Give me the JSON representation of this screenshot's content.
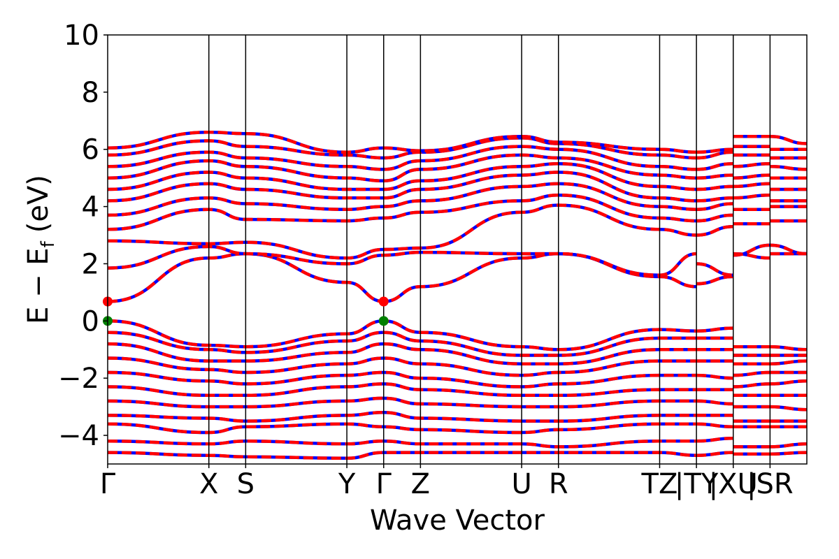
{
  "chart_data": {
    "type": "line",
    "title": "",
    "xlabel": "Wave Vector",
    "ylabel": {
      "main": "E − E",
      "sub": "f",
      "unit": "(eV)"
    },
    "ylim": [
      -5,
      10
    ],
    "yticks": [
      -4,
      -2,
      0,
      2,
      4,
      6,
      8,
      10
    ],
    "ytick_labels": [
      "−4",
      "−2",
      "0",
      "2",
      "4",
      "6",
      "8",
      "10"
    ],
    "kpoints": [
      {
        "pos": 0.0,
        "label": "Γ"
      },
      {
        "pos": 2.75,
        "label": "X"
      },
      {
        "pos": 3.75,
        "label": "S"
      },
      {
        "pos": 6.5,
        "label": "Y"
      },
      {
        "pos": 7.5,
        "label": "Γ"
      },
      {
        "pos": 8.5,
        "label": "Z"
      },
      {
        "pos": 11.25,
        "label": "U"
      },
      {
        "pos": 12.25,
        "label": "R"
      },
      {
        "pos": 15.0,
        "label": "TZ"
      },
      {
        "pos": 16.0,
        "label": "|TY"
      },
      {
        "pos": 17.0,
        "label": "|XU"
      },
      {
        "pos": 18.0,
        "label": "|SR"
      }
    ],
    "xrange": [
      0,
      19.0
    ],
    "grid": false,
    "legend": "none",
    "colors": {
      "spin_up": "#0000ff",
      "spin_down": "#ff0000",
      "vbm": "#008000",
      "cbm": "#ff0000"
    },
    "band_extrema": {
      "cbm": [
        {
          "k": 0.0,
          "E": 0.68
        },
        {
          "k": 7.5,
          "E": 0.68
        }
      ],
      "vbm": [
        {
          "k": 0.0,
          "E": 0.0
        },
        {
          "k": 7.5,
          "E": 0.0
        }
      ]
    },
    "representative_bands": [
      {
        "name": "cb1",
        "k": [
          0,
          2.75,
          3.75,
          6.5,
          7.5,
          8.5,
          11.25,
          12.25,
          15.0,
          16.0,
          16.0,
          17.0,
          17.0,
          18.0,
          18.0,
          19.0
        ],
        "E": [
          0.68,
          2.2,
          2.35,
          1.35,
          0.68,
          1.2,
          2.2,
          2.35,
          1.55,
          1.2,
          1.3,
          1.55,
          2.35,
          2.2,
          2.35,
          2.35
        ]
      },
      {
        "name": "cb2",
        "k": [
          0,
          2.75,
          3.75,
          6.5,
          7.5,
          8.5,
          11.25,
          12.25,
          15.0,
          16.0,
          16.0,
          17.0,
          17.0,
          18.0,
          18.0,
          19.0
        ],
        "E": [
          1.85,
          2.6,
          2.35,
          2.0,
          2.3,
          2.4,
          2.35,
          2.35,
          1.6,
          2.35,
          2.0,
          1.6,
          2.3,
          2.65,
          2.65,
          2.35
        ]
      },
      {
        "name": "cb3",
        "k": [
          0,
          2.75,
          3.75,
          6.5,
          7.5,
          8.5,
          11.25,
          12.25,
          15.0,
          16.0,
          16.0,
          17.0,
          17.0,
          18.0,
          18.0,
          19.0
        ],
        "E": [
          2.8,
          2.7,
          2.75,
          2.2,
          2.5,
          2.55,
          3.8,
          4.05,
          3.2,
          3.0,
          3.0,
          3.3,
          3.4,
          3.4,
          3.5,
          3.5
        ]
      },
      {
        "name": "cb4",
        "k": [
          0,
          2.75,
          3.75,
          6.5,
          7.5,
          8.5,
          11.25,
          12.25,
          15.0,
          16.0,
          16.0,
          17.0,
          17.0,
          18.0,
          18.0,
          19.0
        ],
        "E": [
          3.2,
          3.9,
          3.55,
          3.5,
          3.6,
          3.8,
          4.2,
          4.4,
          3.6,
          3.5,
          3.5,
          3.7,
          3.9,
          3.9,
          4.0,
          4.0
        ]
      },
      {
        "name": "cb5",
        "k": [
          0,
          2.75,
          3.75,
          6.5,
          7.5,
          8.5,
          11.25,
          12.25,
          15.0,
          16.0,
          16.0,
          17.0,
          17.0,
          18.0,
          18.0,
          19.0
        ],
        "E": [
          3.7,
          4.3,
          4.1,
          3.9,
          4.0,
          4.2,
          4.7,
          4.8,
          4.0,
          3.9,
          3.9,
          4.1,
          4.3,
          4.4,
          4.2,
          4.2
        ]
      },
      {
        "name": "cb6",
        "k": [
          0,
          2.75,
          3.75,
          6.5,
          7.5,
          8.5,
          11.25,
          12.25,
          15.0,
          16.0,
          16.0,
          17.0,
          17.0,
          18.0,
          18.0,
          19.0
        ],
        "E": [
          4.2,
          4.8,
          4.6,
          4.3,
          4.3,
          4.6,
          5.1,
          5.2,
          4.3,
          4.2,
          4.2,
          4.3,
          4.7,
          4.8,
          4.6,
          4.6
        ]
      },
      {
        "name": "cb7",
        "k": [
          0,
          2.75,
          3.75,
          6.5,
          7.5,
          8.5,
          11.25,
          12.25,
          15.0,
          16.0,
          16.0,
          17.0,
          17.0,
          18.0,
          18.0,
          19.0
        ],
        "E": [
          4.6,
          5.2,
          5.0,
          4.6,
          4.6,
          4.9,
          5.4,
          5.5,
          4.7,
          4.6,
          4.6,
          4.7,
          5.0,
          5.1,
          5.0,
          5.0
        ]
      },
      {
        "name": "cb8",
        "k": [
          0,
          2.75,
          3.75,
          6.5,
          7.5,
          8.5,
          11.25,
          12.25,
          15.0,
          16.0,
          16.0,
          17.0,
          17.0,
          18.0,
          18.0,
          19.0
        ],
        "E": [
          5.0,
          5.6,
          5.4,
          5.0,
          4.9,
          5.3,
          5.8,
          5.7,
          5.1,
          5.0,
          5.0,
          5.1,
          5.4,
          5.5,
          5.4,
          5.3
        ]
      },
      {
        "name": "cb9",
        "k": [
          0,
          2.75,
          3.75,
          6.5,
          7.5,
          8.5,
          11.25,
          12.25,
          15.0,
          16.0,
          16.0,
          17.0,
          17.0,
          18.0,
          18.0,
          19.0
        ],
        "E": [
          5.4,
          5.9,
          5.7,
          5.4,
          5.3,
          5.6,
          6.1,
          6.0,
          5.4,
          5.3,
          5.3,
          5.5,
          5.8,
          5.8,
          5.7,
          5.7
        ]
      },
      {
        "name": "cb10",
        "k": [
          0,
          2.75,
          3.75,
          6.5,
          7.5,
          8.5,
          11.25,
          12.25,
          15.0,
          16.0,
          16.0,
          17.0,
          17.0,
          18.0,
          18.0,
          19.0
        ],
        "E": [
          5.8,
          6.3,
          6.1,
          5.8,
          5.7,
          5.9,
          6.4,
          6.2,
          5.8,
          5.7,
          5.7,
          5.9,
          6.1,
          6.1,
          6.0,
          6.0
        ]
      },
      {
        "name": "cb11",
        "k": [
          0,
          2.75,
          3.75,
          6.5,
          7.5,
          8.5,
          11.25,
          12.25,
          15.0,
          16.0,
          16.0,
          17.0,
          17.0,
          18.0,
          18.0,
          19.0
        ],
        "E": [
          6.05,
          6.6,
          6.55,
          5.9,
          6.05,
          5.95,
          6.45,
          6.25,
          6.0,
          5.9,
          5.9,
          6.0,
          6.45,
          6.45,
          6.45,
          6.2
        ]
      },
      {
        "name": "vb1",
        "k": [
          0,
          2.75,
          3.75,
          6.5,
          7.5,
          8.5,
          11.25,
          12.25,
          15.0,
          16.0,
          16.0,
          17.0,
          17.0,
          18.0,
          18.0,
          19.0
        ],
        "E": [
          0.0,
          -0.85,
          -0.9,
          -0.45,
          0.0,
          -0.4,
          -0.9,
          -1.0,
          -0.3,
          -0.35,
          -0.35,
          -0.25,
          -0.9,
          -0.9,
          -0.9,
          -1.0
        ]
      },
      {
        "name": "vb2",
        "k": [
          0,
          2.75,
          3.75,
          6.5,
          7.5,
          8.5,
          11.25,
          12.25,
          15.0,
          16.0,
          16.0,
          17.0,
          17.0,
          18.0,
          18.0,
          19.0
        ],
        "E": [
          -0.4,
          -1.0,
          -1.1,
          -0.7,
          -0.4,
          -0.7,
          -1.2,
          -1.2,
          -0.6,
          -0.6,
          -0.6,
          -0.6,
          -1.2,
          -1.2,
          -1.2,
          -1.2
        ]
      },
      {
        "name": "vb3",
        "k": [
          0,
          2.75,
          3.75,
          6.5,
          7.5,
          8.5,
          11.25,
          12.25,
          15.0,
          16.0,
          16.0,
          17.0,
          17.0,
          18.0,
          18.0,
          19.0
        ],
        "E": [
          -0.8,
          -1.4,
          -1.4,
          -1.1,
          -0.8,
          -1.0,
          -1.5,
          -1.5,
          -1.0,
          -1.0,
          -1.0,
          -1.0,
          -1.5,
          -1.5,
          -1.5,
          -1.4
        ]
      },
      {
        "name": "vb4",
        "k": [
          0,
          2.75,
          3.75,
          6.5,
          7.5,
          8.5,
          11.25,
          12.25,
          15.0,
          16.0,
          16.0,
          17.0,
          17.0,
          18.0,
          18.0,
          19.0
        ],
        "E": [
          -1.3,
          -1.7,
          -1.8,
          -1.5,
          -1.3,
          -1.5,
          -1.9,
          -1.8,
          -1.4,
          -1.4,
          -1.4,
          -1.4,
          -1.9,
          -1.8,
          -1.8,
          -1.8
        ]
      },
      {
        "name": "vb5",
        "k": [
          0,
          2.75,
          3.75,
          6.5,
          7.5,
          8.5,
          11.25,
          12.25,
          15.0,
          16.0,
          16.0,
          17.0,
          17.0,
          18.0,
          18.0,
          19.0
        ],
        "E": [
          -1.8,
          -2.1,
          -2.2,
          -1.9,
          -1.8,
          -2.0,
          -2.3,
          -2.2,
          -1.9,
          -1.9,
          -1.9,
          -2.0,
          -2.3,
          -2.2,
          -2.2,
          -2.1
        ]
      },
      {
        "name": "vb6",
        "k": [
          0,
          2.75,
          3.75,
          6.5,
          7.5,
          8.5,
          11.25,
          12.25,
          15.0,
          16.0,
          16.0,
          17.0,
          17.0,
          18.0,
          18.0,
          19.0
        ],
        "E": [
          -2.3,
          -2.6,
          -2.6,
          -2.3,
          -2.2,
          -2.4,
          -2.6,
          -2.6,
          -2.4,
          -2.4,
          -2.4,
          -2.4,
          -2.6,
          -2.6,
          -2.6,
          -2.6
        ]
      },
      {
        "name": "vb7",
        "k": [
          0,
          2.75,
          3.75,
          6.5,
          7.5,
          8.5,
          11.25,
          12.25,
          15.0,
          16.0,
          16.0,
          17.0,
          17.0,
          18.0,
          18.0,
          19.0
        ],
        "E": [
          -2.8,
          -3.0,
          -3.0,
          -2.8,
          -2.7,
          -2.9,
          -3.0,
          -3.0,
          -2.8,
          -2.8,
          -2.8,
          -2.9,
          -3.0,
          -3.0,
          -3.0,
          -3.1
        ]
      },
      {
        "name": "vb8",
        "k": [
          0,
          2.75,
          3.75,
          6.5,
          7.5,
          8.5,
          11.25,
          12.25,
          15.0,
          16.0,
          16.0,
          17.0,
          17.0,
          18.0,
          18.0,
          19.0
        ],
        "E": [
          -3.3,
          -3.4,
          -3.5,
          -3.3,
          -3.2,
          -3.4,
          -3.5,
          -3.5,
          -3.3,
          -3.3,
          -3.3,
          -3.3,
          -3.5,
          -3.5,
          -3.5,
          -3.5
        ]
      },
      {
        "name": "vb9",
        "k": [
          0,
          2.75,
          3.75,
          6.5,
          7.5,
          8.5,
          11.25,
          12.25,
          15.0,
          16.0,
          16.0,
          17.0,
          17.0,
          18.0,
          18.0,
          19.0
        ],
        "E": [
          -3.6,
          -3.9,
          -3.7,
          -3.6,
          -3.7,
          -3.8,
          -3.9,
          -3.8,
          -3.6,
          -3.6,
          -3.6,
          -3.7,
          -3.7,
          -3.7,
          -3.7,
          -3.7
        ]
      },
      {
        "name": "vb10",
        "k": [
          0,
          2.75,
          3.75,
          6.5,
          7.5,
          8.5,
          11.25,
          12.25,
          15.0,
          16.0,
          16.0,
          17.0,
          17.0,
          18.0,
          18.0,
          19.0
        ],
        "E": [
          -4.2,
          -4.3,
          -4.2,
          -4.3,
          -4.2,
          -4.3,
          -4.3,
          -4.4,
          -4.2,
          -4.2,
          -4.2,
          -4.1,
          -4.4,
          -4.4,
          -4.4,
          -4.3
        ]
      },
      {
        "name": "vb11",
        "k": [
          0,
          2.75,
          3.75,
          6.5,
          7.5,
          8.5,
          11.25,
          12.25,
          15.0,
          16.0,
          16.0,
          17.0,
          17.0,
          18.0,
          18.0,
          19.0
        ],
        "E": [
          -4.6,
          -4.7,
          -4.75,
          -4.8,
          -4.6,
          -4.6,
          -4.6,
          -4.6,
          -4.6,
          -4.7,
          -4.7,
          -4.6,
          -4.65,
          -4.65,
          -4.65,
          -4.6
        ]
      }
    ]
  }
}
